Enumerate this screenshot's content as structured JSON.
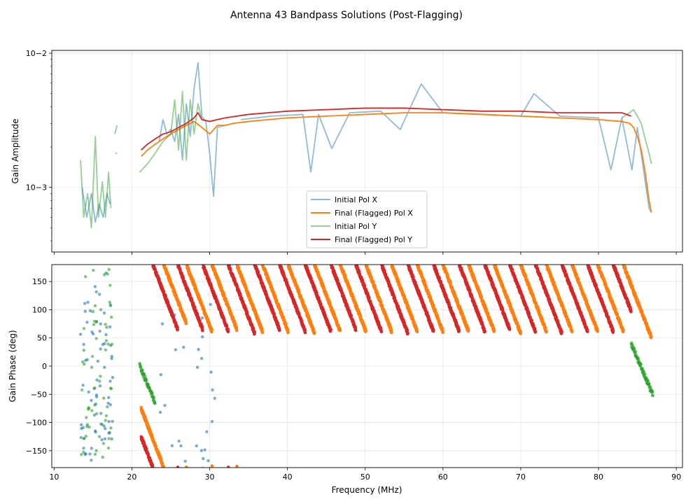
{
  "chart_data": [
    {
      "type": "line",
      "figure_title": "Antenna 43 Bandpass Solutions (Post-Flagging)",
      "title": "",
      "xlabel": "",
      "ylabel": "Gain Amplitude",
      "yscale": "log",
      "xlim": [
        9.7,
        90.8
      ],
      "ylim": [
        0.00033,
        0.0105
      ],
      "ytick_values": [
        0.001,
        0.01
      ],
      "ytick_labels": [
        "10−3",
        "10−2"
      ],
      "xtick_values": [
        10,
        20,
        30,
        40,
        50,
        60,
        70,
        80,
        90
      ],
      "grid": true,
      "legend_position": "lower-center",
      "series": [
        {
          "name": "Initial Pol X",
          "color": "#1f77b4",
          "alpha": 0.5,
          "segments": [
            {
              "x": [
                13.6,
                14.2,
                14.8,
                15.3,
                15.8,
                16.3,
                16.8,
                17.2
              ],
              "y": [
                0.001,
                0.0006,
                0.0009,
                0.00055,
                0.00075,
                0.0006,
                0.0009,
                0.00075
              ]
            },
            {
              "x": [
                17.8,
                18.1
              ],
              "y": [
                0.0025,
                0.0029
              ]
            },
            {
              "x": [
                23.5,
                24.0,
                24.5,
                25.0,
                25.5,
                26.0,
                26.5,
                27.0,
                27.5,
                28.0,
                28.5,
                29.0,
                29.5,
                30.0,
                30.5,
                31.0,
                32.0
              ],
              "y": [
                0.0022,
                0.0032,
                0.0025,
                0.0027,
                0.0022,
                0.0035,
                0.0016,
                0.0042,
                0.0024,
                0.0055,
                0.0085,
                0.0034,
                0.0031,
                0.0018,
                0.00086,
                0.0028,
                0.0029
              ]
            },
            {
              "x": [
                34,
                38,
                42,
                43.0,
                44,
                45.7,
                48,
                52,
                54.5,
                57.2,
                60,
                65,
                70,
                71.7,
                75,
                80,
                81.6,
                83,
                84.3,
                85,
                86.5,
                86.8
              ],
              "y": [
                0.0032,
                0.0034,
                0.0035,
                0.0013,
                0.0035,
                0.00195,
                0.0036,
                0.0037,
                0.0027,
                0.0059,
                0.0036,
                0.0035,
                0.0034,
                0.005,
                0.0034,
                0.0033,
                0.00135,
                0.0033,
                0.00135,
                0.0028,
                0.0007,
                0.00065
              ]
            }
          ]
        },
        {
          "name": "Final (Flagged) Pol X",
          "color": "#ff7f0e",
          "alpha": 1.0,
          "segments": [
            {
              "x": [
                21.2,
                22,
                23,
                24,
                25,
                26,
                27,
                28,
                29,
                30,
                31,
                32,
                33,
                35,
                40,
                45,
                50,
                55,
                60,
                65,
                70,
                75,
                80,
                83,
                84,
                84.5,
                85,
                85.5,
                86,
                86.5,
                86.8
              ],
              "y": [
                0.0017,
                0.0019,
                0.0021,
                0.0023,
                0.0025,
                0.0027,
                0.0029,
                0.0031,
                0.0028,
                0.0025,
                0.0029,
                0.0029,
                0.003,
                0.0031,
                0.0033,
                0.0034,
                0.0035,
                0.0036,
                0.0036,
                0.0035,
                0.0034,
                0.0033,
                0.0032,
                0.0031,
                0.003,
                0.0028,
                0.0024,
                0.0019,
                0.0013,
                0.0008,
                0.00065
              ]
            }
          ]
        },
        {
          "name": "Initial Pol Y",
          "color": "#2ca02c",
          "alpha": 0.5,
          "segments": [
            {
              "x": [
                13.4,
                13.8,
                14.3,
                14.8,
                15.3,
                15.7,
                16.2,
                16.6,
                17.0,
                17.3
              ],
              "y": [
                0.0016,
                0.0006,
                0.0009,
                0.0005,
                0.0024,
                0.0006,
                0.0011,
                0.0006,
                0.0013,
                0.0007
              ]
            },
            {
              "x": [
                18.0
              ],
              "y": [
                0.0018
              ]
            },
            {
              "x": [
                21.0,
                22.0,
                23.0,
                24.0,
                25.0,
                25.5,
                26.0,
                26.5,
                27.0,
                27.5,
                28.0,
                28.5,
                29.0,
                30.0,
                31.0
              ],
              "y": [
                0.0013,
                0.0015,
                0.0018,
                0.0022,
                0.0025,
                0.0045,
                0.0019,
                0.0052,
                0.0016,
                0.0045,
                0.0025,
                0.0042,
                0.0032,
                0.0031,
                0.0032
              ]
            },
            {
              "x": [
                83,
                84,
                84.5,
                85,
                85.5,
                86,
                86.5,
                86.8
              ],
              "y": [
                0.0033,
                0.0036,
                0.0038,
                0.0034,
                0.003,
                0.0023,
                0.0018,
                0.0015
              ]
            }
          ]
        },
        {
          "name": "Final (Flagged) Pol Y",
          "color": "#d62728",
          "alpha": 1.0,
          "segments": [
            {
              "x": [
                21.2,
                22,
                23,
                24,
                25,
                26,
                27,
                28,
                28.5,
                29,
                30,
                31,
                32,
                35,
                40,
                45,
                50,
                55,
                60,
                65,
                70,
                75,
                80,
                83,
                84.2
              ],
              "y": [
                0.0019,
                0.0021,
                0.0023,
                0.0025,
                0.0026,
                0.0028,
                0.003,
                0.0033,
                0.0036,
                0.0032,
                0.0031,
                0.0032,
                0.0033,
                0.0035,
                0.0037,
                0.0038,
                0.0039,
                0.0039,
                0.0038,
                0.0037,
                0.0037,
                0.0036,
                0.0036,
                0.0036,
                0.0034
              ]
            }
          ]
        }
      ]
    },
    {
      "type": "scatter",
      "title": "",
      "xlabel": "Frequency (MHz)",
      "ylabel": "Gain Phase (deg)",
      "xlim": [
        9.7,
        90.8
      ],
      "ylim": [
        -180,
        180
      ],
      "xtick_values": [
        10,
        20,
        30,
        40,
        50,
        60,
        70,
        80,
        90
      ],
      "xtick_labels": [
        "10",
        "20",
        "30",
        "40",
        "50",
        "60",
        "70",
        "80",
        "90"
      ],
      "ytick_values": [
        -150,
        -100,
        -50,
        0,
        50,
        100,
        150
      ],
      "ytick_labels": [
        "−150",
        "−100",
        "−50",
        "0",
        "50",
        "100",
        "150"
      ],
      "grid": true,
      "phase_model": {
        "description": "Phase wraps linearly with frequency (~ -3.6 deg per 0.1 MHz); red (final Pol Y) and orange (final Pol X) traces are interleaved diagonal stripes",
        "red_wraps_at_mhz": [
          22.7,
          25.9,
          29.1,
          32.4,
          35.8,
          39.0,
          42.3,
          45.6,
          48.8,
          52.1,
          55.5,
          58.8,
          62.1,
          65.4,
          68.6,
          71.9,
          75.3,
          78.6,
          81.9
        ],
        "orange_wraps_at_mhz": [
          24.1,
          27.0,
          30.3,
          33.5,
          36.8,
          40.1,
          43.5,
          46.8,
          50.1,
          53.4,
          56.7,
          60.0,
          63.3,
          66.6,
          70.0,
          73.3,
          76.6,
          79.9,
          83.2
        ],
        "final_x_range_mhz": [
          21.2,
          86.8
        ],
        "final_y_range_mhz": [
          21.2,
          84.2
        ]
      },
      "series": [
        {
          "name": "Initial Pol X",
          "color": "#1f77b4",
          "alpha": 0.6,
          "region_mhz": [
            [
              13.4,
              18.2
            ],
            [
              23.5,
              31.0
            ]
          ],
          "note": "noisy scatter"
        },
        {
          "name": "Final (Flagged) Pol X",
          "color": "#ff7f0e",
          "alpha": 1.0
        },
        {
          "name": "Initial Pol Y",
          "color": "#2ca02c",
          "alpha": 0.6,
          "region_mhz": [
            [
              13.4,
              18.2
            ],
            [
              21.0,
              23.0
            ],
            [
              84.2,
              87.0
            ]
          ],
          "note": "noisy scatter plus wrapped ramps at band edges"
        },
        {
          "name": "Final (Flagged) Pol Y",
          "color": "#d62728",
          "alpha": 1.0
        }
      ]
    }
  ]
}
